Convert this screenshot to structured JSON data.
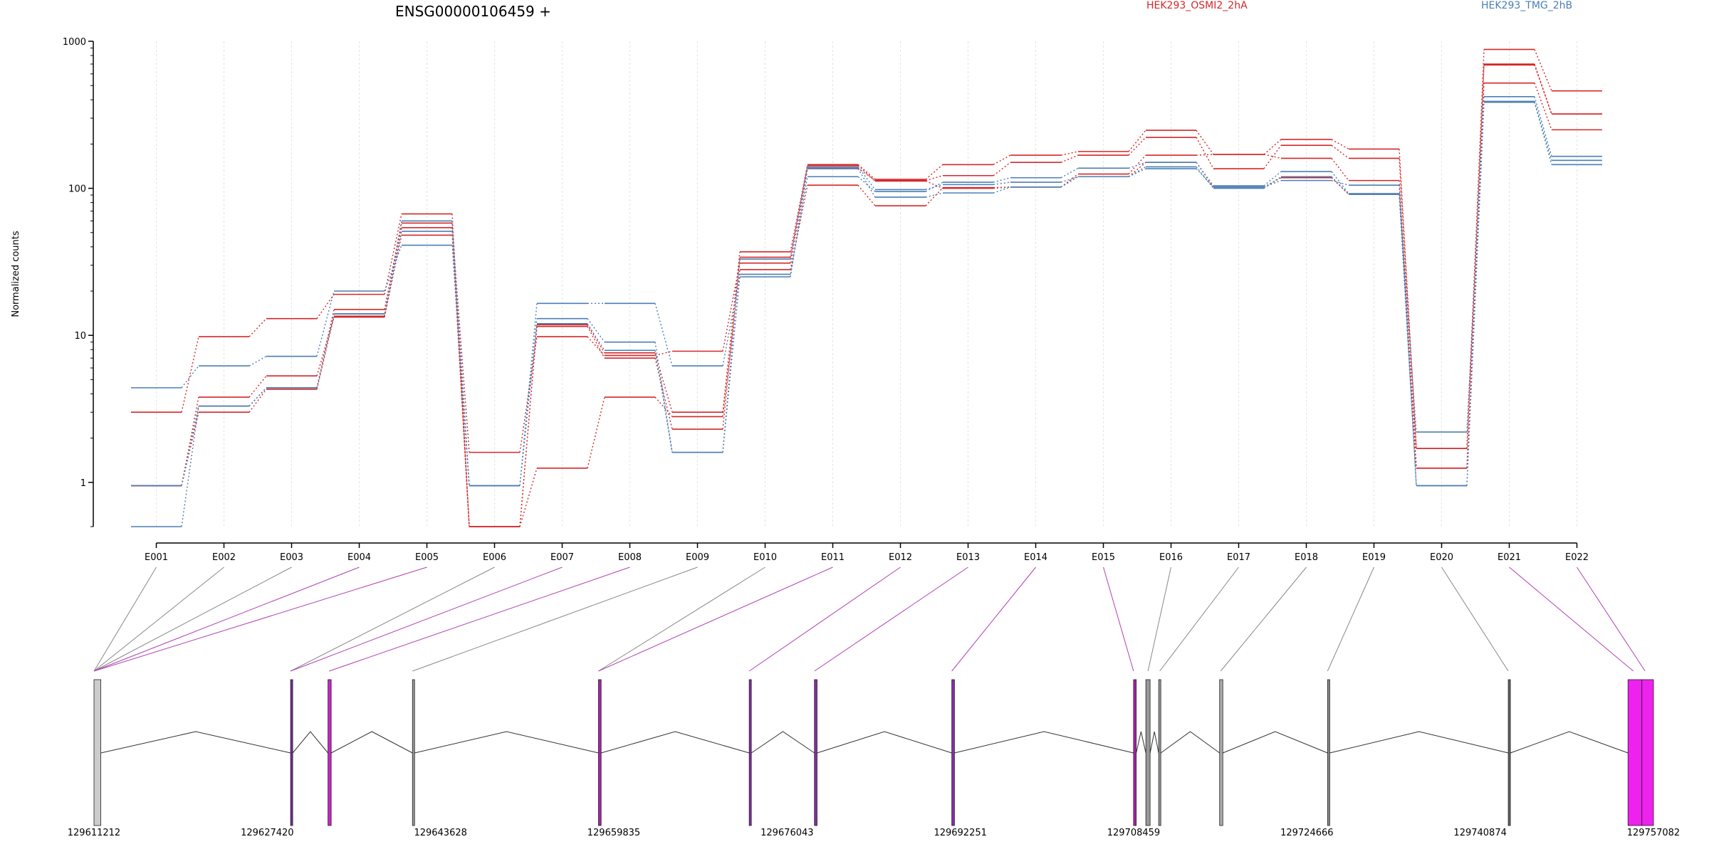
{
  "chart_data": {
    "type": "line",
    "title": "ENSG00000106459 +",
    "ylabel": "Normalized counts",
    "xlabel": "",
    "yscale": "log",
    "ylim": [
      0.5,
      1000
    ],
    "yticks": [
      "1",
      "10",
      "100",
      "1000"
    ],
    "grid": "vertical",
    "legend_placement": "top",
    "colors": {
      "red": "#d62728",
      "blue": "#1f77b4",
      "splice": "#b040b0",
      "intron": "#333333"
    },
    "categories": [
      "E001",
      "E002",
      "E003",
      "E004",
      "E005",
      "E006",
      "E007",
      "E008",
      "E009",
      "E010",
      "E011",
      "E012",
      "E013",
      "E014",
      "E015",
      "E016",
      "E017",
      "E018",
      "E019",
      "E020",
      "E021",
      "E022"
    ],
    "groups": [
      {
        "name": "HEK293_OSMI2_2hA",
        "color": "#d62728"
      },
      {
        "name": "HEK293_TMG_2hB",
        "color": "#4a7fb6"
      }
    ],
    "series": [
      {
        "group": 0,
        "values": [
          0.95,
          3.0,
          4.3,
          13.5,
          48,
          0.5,
          11.5,
          7.0,
          2.3,
          34,
          143,
          112,
          100,
          102,
          120,
          150,
          102,
          118,
          91,
          1.25,
          520,
          250
        ]
      },
      {
        "group": 0,
        "values": [
          3.0,
          9.8,
          13.0,
          19.0,
          67,
          0.5,
          11.8,
          7.6,
          3.0,
          37,
          145,
          115,
          145,
          168,
          178,
          248,
          170,
          215,
          185,
          1.7,
          880,
          460
        ]
      },
      {
        "group": 0,
        "values": [
          0.95,
          3.8,
          5.3,
          13.3,
          54,
          1.6,
          9.8,
          7.3,
          7.8,
          31,
          137,
          113,
          122,
          150,
          168,
          222,
          136,
          196,
          160,
          1.7,
          700,
          320
        ]
      },
      {
        "group": 0,
        "values": [
          0.95,
          3.3,
          4.4,
          15.0,
          58,
          0.5,
          1.25,
          3.8,
          2.8,
          28,
          105,
          76,
          101,
          102,
          125,
          168,
          170,
          160,
          113,
          1.25,
          690,
          320
        ]
      },
      {
        "group": 1,
        "values": [
          0.5,
          3.3,
          4.4,
          14.0,
          51,
          0.95,
          16.5,
          16.5,
          6.2,
          26,
          120,
          95,
          110,
          118,
          137,
          150,
          104,
          130,
          92,
          2.2,
          420,
          165
        ]
      },
      {
        "group": 1,
        "values": [
          4.4,
          6.2,
          7.2,
          20.0,
          41,
          0.95,
          13.0,
          9.0,
          1.6,
          25,
          136,
          87,
          93,
          102,
          120,
          136,
          102,
          113,
          105,
          0.95,
          385,
          145
        ]
      },
      {
        "group": 1,
        "values": [
          0.95,
          3.3,
          4.4,
          14.0,
          60,
          0.95,
          12.0,
          7.9,
          1.6,
          33,
          140,
          98,
          106,
          110,
          120,
          140,
          100,
          120,
          91,
          0.95,
          390,
          155
        ]
      }
    ],
    "gene_model": {
      "start": 129611212,
      "end": 129757082,
      "coordinate_labels": [
        "129611212",
        "129627420",
        "129643628",
        "129659835",
        "129676043",
        "129692251",
        "129708459",
        "129724666",
        "129740874",
        "129757082"
      ],
      "exons": [
        {
          "start": 129611212,
          "end": 129611850,
          "color": "#cccccc",
          "splice": false
        },
        {
          "start": 129629600,
          "end": 129629750,
          "color": "#7a2a9a",
          "splice": true
        },
        {
          "start": 129633100,
          "end": 129633400,
          "color": "#cc22cc",
          "splice": true
        },
        {
          "start": 129641000,
          "end": 129641130,
          "color": "#999999",
          "splice": false
        },
        {
          "start": 129658400,
          "end": 129658650,
          "color": "#aa22aa",
          "splice": true
        },
        {
          "start": 129672500,
          "end": 129672700,
          "color": "#8a2aaa",
          "splice": true
        },
        {
          "start": 129678600,
          "end": 129678850,
          "color": "#8a2aaa",
          "splice": true
        },
        {
          "start": 129691450,
          "end": 129691700,
          "color": "#8a2aaa",
          "splice": true
        },
        {
          "start": 129708450,
          "end": 129708700,
          "color": "#aa22aa",
          "splice": true
        },
        {
          "start": 129709600,
          "end": 129710000,
          "color": "#999999",
          "splice": false
        },
        {
          "start": 129710800,
          "end": 129710950,
          "color": "#999999",
          "splice": false
        },
        {
          "start": 129716500,
          "end": 129716800,
          "color": "#aaaaaa",
          "splice": false
        },
        {
          "start": 129726600,
          "end": 129726750,
          "color": "#888888",
          "splice": false
        },
        {
          "start": 129743500,
          "end": 129743650,
          "color": "#666666",
          "splice": false
        },
        {
          "start": 129754700,
          "end": 129756000,
          "color": "#ee22ee",
          "splice": true
        },
        {
          "start": 129756000,
          "end": 129757082,
          "color": "#ee22ee",
          "splice": true
        }
      ],
      "bin_connectors": [
        {
          "pos": 129611212,
          "splice": false
        },
        {
          "pos": 129611212,
          "splice": false
        },
        {
          "pos": 129611212,
          "splice": false
        },
        {
          "pos": 129611212,
          "splice": true
        },
        {
          "pos": 129611212,
          "splice": true
        },
        {
          "pos": 129629600,
          "splice": false
        },
        {
          "pos": 129629600,
          "splice": true
        },
        {
          "pos": 129633200,
          "splice": true
        },
        {
          "pos": 129641000,
          "splice": false
        },
        {
          "pos": 129658400,
          "splice": false
        },
        {
          "pos": 129658400,
          "splice": true
        },
        {
          "pos": 129672500,
          "splice": true
        },
        {
          "pos": 129678600,
          "splice": true
        },
        {
          "pos": 129691450,
          "splice": true
        },
        {
          "pos": 129708450,
          "splice": true
        },
        {
          "pos": 129709800,
          "splice": false
        },
        {
          "pos": 129710900,
          "splice": false
        },
        {
          "pos": 129716600,
          "splice": false
        },
        {
          "pos": 129726600,
          "splice": false
        },
        {
          "pos": 129743500,
          "splice": false
        },
        {
          "pos": 129755200,
          "splice": true
        },
        {
          "pos": 129756300,
          "splice": true
        }
      ]
    }
  }
}
